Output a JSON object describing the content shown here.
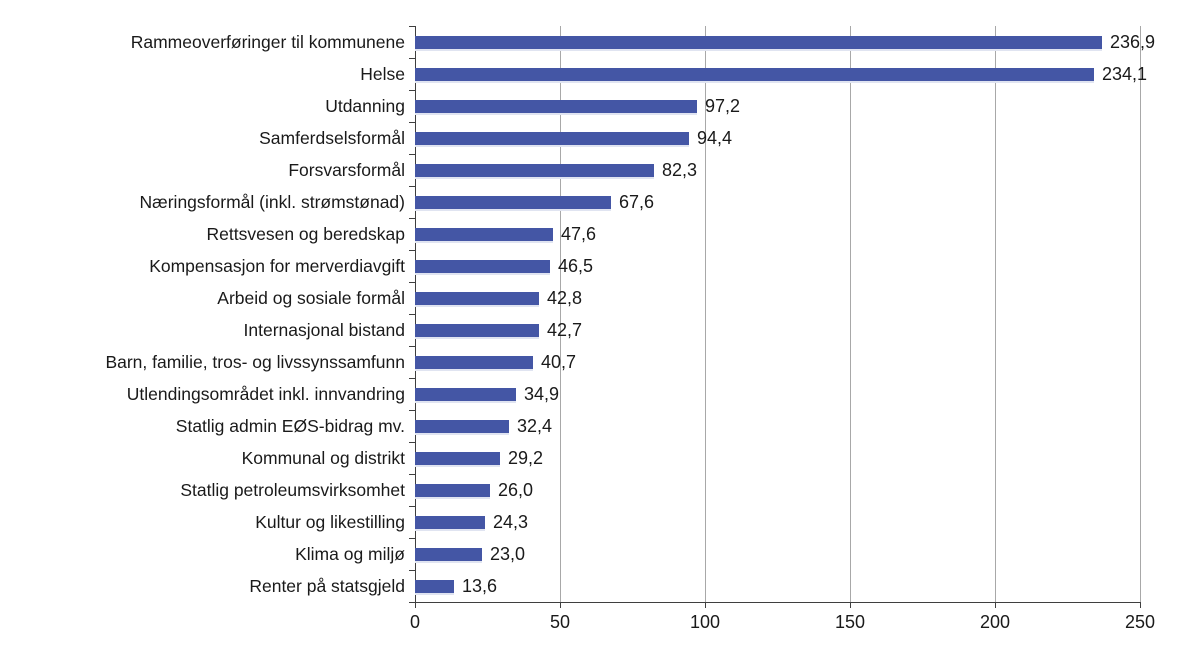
{
  "chart_data": {
    "type": "bar",
    "orientation": "horizontal",
    "title": "",
    "xlabel": "",
    "ylabel": "",
    "xlim": [
      0,
      250
    ],
    "x_ticks": [
      0,
      50,
      100,
      150,
      200,
      250
    ],
    "x_tick_labels": [
      "0",
      "50",
      "100",
      "150",
      "200",
      "250"
    ],
    "grid": "vertical-gridlines-on",
    "legend": "none",
    "decimal_separator": ",",
    "colors": {
      "bar": "#4456a5",
      "bar_shadow": "#e0e4f1",
      "axis": "#3f3f3f",
      "gridline": "#a8a8a8",
      "text": "#1a1a1a"
    },
    "categories": [
      "Rammeoverføringer til kommunene",
      "Helse",
      "Utdanning",
      "Samferdselsformål",
      "Forsvarsformål",
      "Næringsformål (inkl. strømstønad)",
      "Rettsvesen og beredskap",
      "Kompensasjon for merverdiavgift",
      "Arbeid og sosiale formål",
      "Internasjonal bistand",
      "Barn, familie, tros- og livssynssamfunn",
      "Utlendingsområdet inkl. innvandring",
      "Statlig admin EØS-bidrag mv.",
      "Kommunal og distrikt",
      "Statlig petroleumsvirksomhet",
      "Kultur og likestilling",
      "Klima og miljø",
      "Renter på statsgjeld"
    ],
    "values": [
      236.9,
      234.1,
      97.2,
      94.4,
      82.3,
      67.6,
      47.6,
      46.5,
      42.8,
      42.7,
      40.7,
      34.9,
      32.4,
      29.2,
      26.0,
      24.3,
      23.0,
      13.6
    ],
    "value_labels": [
      "236,9",
      "234,1",
      "97,2",
      "94,4",
      "82,3",
      "67,6",
      "47,6",
      "46,5",
      "42,8",
      "42,7",
      "40,7",
      "34,9",
      "32,4",
      "29,2",
      "26,0",
      "24,3",
      "23,0",
      "13,6"
    ]
  }
}
